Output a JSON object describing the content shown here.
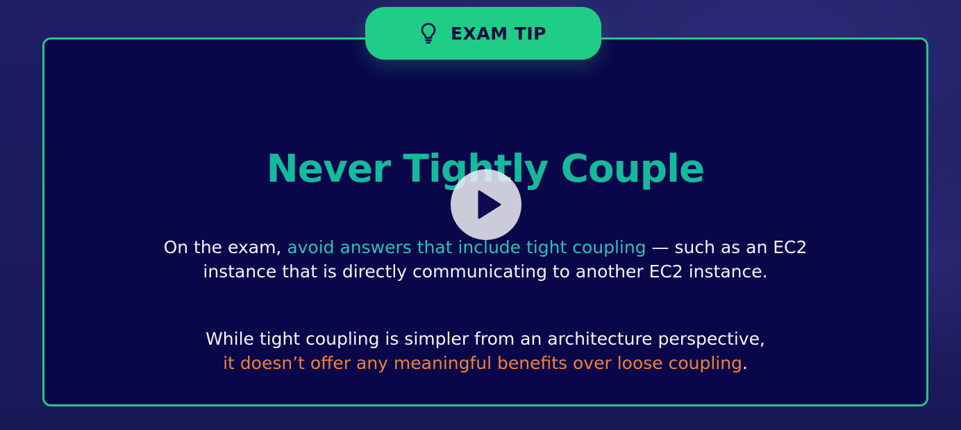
{
  "badge": {
    "icon": "lightbulb-icon",
    "label": "EXAM TIP",
    "color": "#1fcd86"
  },
  "title": "Never Tightly Couple",
  "paragraph1": {
    "before": "On the exam, ",
    "highlight": "avoid answers that include tight coupling",
    "after_line1": " — such as an EC2",
    "line2": "instance that is directly communicating to another EC2 instance."
  },
  "paragraph2": {
    "line1": "While tight coupling is simpler from an architecture perspective,",
    "highlight": "it doesn’t offer any meaningful benefits over loose coupling",
    "end": "."
  },
  "player": {
    "icon": "play-icon"
  },
  "colors": {
    "accent_green": "#22c98a",
    "title_teal": "#15b99c",
    "highlight_teal": "#2ac2b3",
    "highlight_orange": "#f0813a",
    "card_background": "#0a064a",
    "page_background": "#1b1a5e"
  }
}
